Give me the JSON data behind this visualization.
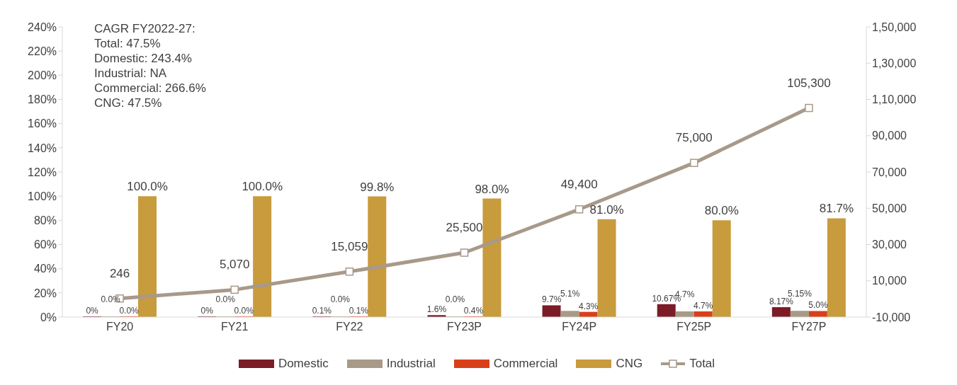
{
  "chart_data": {
    "type": "bar",
    "categories": [
      "FY20",
      "FY21",
      "FY22",
      "FY23P",
      "FY24P",
      "FY25P",
      "FY27P"
    ],
    "series": [
      {
        "name": "Domestic",
        "color": "#7b1c27",
        "values": [
          0,
          0,
          0.1,
          1.6,
          9.7,
          10.67,
          8.17
        ],
        "value_labels": [
          "0%",
          "0%",
          "0.1%",
          "1.6%",
          "9.7%",
          "10.67%",
          "8.17%"
        ]
      },
      {
        "name": "Industrial",
        "color": "#a89a87",
        "values": [
          0,
          0,
          0,
          0,
          5.1,
          4.7,
          5.15
        ],
        "value_labels": [
          "0.0%",
          "0.0%",
          "0.0%",
          "0.0%",
          "5.1%",
          "4.7%",
          "5.15%"
        ]
      },
      {
        "name": "Commercial",
        "color": "#d9401a",
        "values": [
          0,
          0,
          0.1,
          0.4,
          4.3,
          4.7,
          5.0
        ],
        "value_labels": [
          "0.0%",
          "0.0%",
          "0.1%",
          "0.4%",
          "4.3%",
          "4.7%",
          "5.0%"
        ]
      },
      {
        "name": "CNG",
        "color": "#c89b3c",
        "values": [
          100.0,
          100.0,
          99.8,
          98.0,
          81.0,
          80.0,
          81.7
        ],
        "value_labels": [
          "100.0%",
          "100.0%",
          "99.8%",
          "98.0%",
          "81.0%",
          "80.0%",
          "81.7%"
        ]
      },
      {
        "name": "Total",
        "type": "line",
        "axis": "y2",
        "color": "#a8998a",
        "marker": "square",
        "values": [
          246,
          5070,
          15059,
          25500,
          49400,
          75000,
          105300
        ],
        "value_labels": [
          "246",
          "5,070",
          "15,059",
          "25,500",
          "49,400",
          "75,000",
          "105,300"
        ]
      }
    ],
    "ylim": [
      0,
      240
    ],
    "yticks": [
      {
        "value": 0,
        "label": "0%"
      },
      {
        "value": 20,
        "label": "20%"
      },
      {
        "value": 40,
        "label": "40%"
      },
      {
        "value": 60,
        "label": "60%"
      },
      {
        "value": 80,
        "label": "80%"
      },
      {
        "value": 100,
        "label": "100%"
      },
      {
        "value": 120,
        "label": "120%"
      },
      {
        "value": 140,
        "label": "140%"
      },
      {
        "value": 160,
        "label": "160%"
      },
      {
        "value": 180,
        "label": "180%"
      },
      {
        "value": 200,
        "label": "200%"
      },
      {
        "value": 220,
        "label": "220%"
      },
      {
        "value": 240,
        "label": "240%"
      }
    ],
    "y2lim": [
      -10000,
      150000
    ],
    "y2ticks": [
      {
        "value": -10000,
        "label": "-10,000"
      },
      {
        "value": 10000,
        "label": "10,000"
      },
      {
        "value": 30000,
        "label": "30,000"
      },
      {
        "value": 50000,
        "label": "50,000"
      },
      {
        "value": 70000,
        "label": "70,000"
      },
      {
        "value": 90000,
        "label": "90,000"
      },
      {
        "value": 110000,
        "label": "1,10,000"
      },
      {
        "value": 130000,
        "label": "1,30,000"
      },
      {
        "value": 150000,
        "label": "1,50,000"
      }
    ],
    "legend": "bottom",
    "annotations": [
      "CAGR FY2022-27:",
      "Total: 47.5%",
      "Domestic: 243.4%",
      "Industrial: NA",
      "Commercial: 266.6%",
      "CNG: 47.5%"
    ]
  }
}
